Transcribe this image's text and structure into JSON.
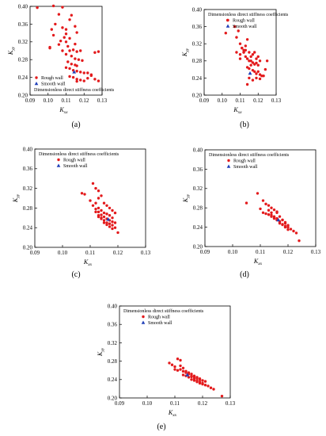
{
  "figure": {
    "axis_label_x": {
      "main": "K",
      "sub": "xx"
    },
    "axis_label_y": {
      "main": "K",
      "sub": "yy"
    },
    "legend_title": "Dimensionless direct stiffness coefficients",
    "legend_items": [
      {
        "label": "Rough wall",
        "color": "#e31a1c",
        "marker": "circle"
      },
      {
        "label": "Smooth wall",
        "color": "#1f3fb8",
        "marker": "triangle"
      }
    ]
  },
  "chart_data": [
    {
      "panel": "(a)",
      "type": "scatter",
      "legend_placement": "bottom-left",
      "xlim": [
        0.09,
        0.13
      ],
      "ylim": [
        0.2,
        0.4
      ],
      "xticks": [
        "0.09",
        "0.10",
        "0.11",
        "0.12",
        "0.13"
      ],
      "yticks": [
        "0.20",
        "0.24",
        "0.28",
        "0.32",
        "0.36",
        "0.40"
      ],
      "series": [
        {
          "name": "Rough wall",
          "color": "#e31a1c",
          "x": [
            0.094,
            0.103,
            0.106,
            0.108,
            0.102,
            0.104,
            0.101,
            0.108,
            0.11,
            0.11,
            0.112,
            0.113,
            0.115,
            0.116,
            0.103,
            0.107,
            0.109,
            0.11,
            0.111,
            0.112,
            0.114,
            0.116,
            0.118,
            0.108,
            0.11,
            0.113,
            0.115,
            0.117,
            0.119,
            0.111,
            0.113,
            0.115,
            0.116,
            0.11,
            0.112,
            0.114,
            0.116,
            0.118,
            0.12,
            0.122,
            0.124,
            0.126,
            0.128,
            0.112,
            0.114,
            0.116,
            0.118,
            0.12,
            0.122,
            0.124,
            0.126,
            0.128,
            0.101,
            0.106,
            0.112,
            0.115,
            0.116
          ],
          "y": [
            0.397,
            0.401,
            0.382,
            0.398,
            0.348,
            0.36,
            0.308,
            0.352,
            0.348,
            0.338,
            0.37,
            0.38,
            0.355,
            0.341,
            0.335,
            0.322,
            0.33,
            0.32,
            0.31,
            0.3,
            0.302,
            0.298,
            0.3,
            0.3,
            0.292,
            0.288,
            0.282,
            0.28,
            0.278,
            0.275,
            0.27,
            0.268,
            0.266,
            0.262,
            0.26,
            0.256,
            0.254,
            0.252,
            0.25,
            0.25,
            0.246,
            0.296,
            0.298,
            0.242,
            0.24,
            0.236,
            0.234,
            0.232,
            0.238,
            0.244,
            0.236,
            0.232,
            0.306,
            0.314,
            0.328,
            0.315,
            0.231
          ]
        },
        {
          "name": "Smooth wall",
          "color": "#1f3fb8",
          "x": [
            0.1145
          ],
          "y": [
            0.252
          ]
        }
      ]
    },
    {
      "panel": "(b)",
      "type": "scatter",
      "legend_placement": "top-right",
      "xlim": [
        0.09,
        0.13
      ],
      "ylim": [
        0.2,
        0.4
      ],
      "xticks": [
        "0.09",
        "0.10",
        "0.11",
        "0.12",
        "0.13"
      ],
      "yticks": [
        "0.20",
        "0.24",
        "0.28",
        "0.32",
        "0.36",
        "0.40"
      ],
      "series": [
        {
          "name": "Rough wall",
          "color": "#e31a1c",
          "x": [
            0.102,
            0.103,
            0.107,
            0.108,
            0.109,
            0.11,
            0.111,
            0.112,
            0.113,
            0.114,
            0.115,
            0.116,
            0.117,
            0.118,
            0.119,
            0.12,
            0.121,
            0.108,
            0.11,
            0.112,
            0.113,
            0.114,
            0.115,
            0.116,
            0.117,
            0.118,
            0.119,
            0.12,
            0.111,
            0.113,
            0.114,
            0.115,
            0.116,
            0.117,
            0.118,
            0.119,
            0.12,
            0.121,
            0.122,
            0.123,
            0.124,
            0.125,
            0.114,
            0.115,
            0.117,
            0.119,
            0.121,
            0.11,
            0.112
          ],
          "y": [
            0.345,
            0.375,
            0.36,
            0.335,
            0.35,
            0.32,
            0.31,
            0.305,
            0.315,
            0.33,
            0.3,
            0.29,
            0.295,
            0.3,
            0.285,
            0.29,
            0.28,
            0.3,
            0.295,
            0.3,
            0.29,
            0.285,
            0.28,
            0.28,
            0.276,
            0.272,
            0.275,
            0.27,
            0.31,
            0.305,
            0.265,
            0.262,
            0.27,
            0.258,
            0.255,
            0.25,
            0.255,
            0.248,
            0.245,
            0.245,
            0.26,
            0.28,
            0.225,
            0.24,
            0.235,
            0.24,
            0.238,
            0.285,
            0.3
          ]
        },
        {
          "name": "Smooth wall",
          "color": "#1f3fb8",
          "x": [
            0.1155
          ],
          "y": [
            0.251
          ]
        }
      ]
    },
    {
      "panel": "(c)",
      "type": "scatter",
      "legend_placement": "top-left",
      "xlim": [
        0.09,
        0.13
      ],
      "ylim": [
        0.2,
        0.4
      ],
      "xticks": [
        "0.09",
        "0.10",
        "0.11",
        "0.12",
        "0.13"
      ],
      "yticks": [
        "0.20",
        "0.24",
        "0.28",
        "0.32",
        "0.36",
        "0.40"
      ],
      "series": [
        {
          "name": "Rough wall",
          "color": "#e31a1c",
          "x": [
            0.107,
            0.108,
            0.11,
            0.111,
            0.112,
            0.113,
            0.112,
            0.113,
            0.114,
            0.115,
            0.116,
            0.117,
            0.118,
            0.119,
            0.113,
            0.114,
            0.115,
            0.116,
            0.117,
            0.118,
            0.111,
            0.112,
            0.113,
            0.114,
            0.115,
            0.116,
            0.117,
            0.118,
            0.119,
            0.12,
            0.113,
            0.114,
            0.115,
            0.116,
            0.117,
            0.118,
            0.119,
            0.112,
            0.113,
            0.114,
            0.115,
            0.116,
            0.117,
            0.118
          ],
          "y": [
            0.31,
            0.308,
            0.295,
            0.33,
            0.32,
            0.315,
            0.29,
            0.3,
            0.305,
            0.29,
            0.285,
            0.28,
            0.275,
            0.27,
            0.28,
            0.275,
            0.27,
            0.268,
            0.265,
            0.26,
            0.285,
            0.278,
            0.272,
            0.266,
            0.262,
            0.258,
            0.255,
            0.252,
            0.25,
            0.23,
            0.265,
            0.26,
            0.255,
            0.25,
            0.248,
            0.245,
            0.24,
            0.272,
            0.262,
            0.258,
            0.25,
            0.246,
            0.242,
            0.238
          ]
        },
        {
          "name": "Smooth wall",
          "color": "#1f3fb8",
          "x": [
            0.1165
          ],
          "y": [
            0.257
          ]
        }
      ]
    },
    {
      "panel": "(d)",
      "type": "scatter",
      "legend_placement": "top-left",
      "xlim": [
        0.09,
        0.13
      ],
      "ylim": [
        0.2,
        0.4
      ],
      "xticks": [
        "0.09",
        "0.10",
        "0.11",
        "0.12",
        "0.13"
      ],
      "yticks": [
        "0.20",
        "0.24",
        "0.28",
        "0.32",
        "0.36",
        "0.40"
      ],
      "series": [
        {
          "name": "Rough wall",
          "color": "#e31a1c",
          "x": [
            0.105,
            0.109,
            0.11,
            0.111,
            0.112,
            0.113,
            0.114,
            0.115,
            0.116,
            0.111,
            0.112,
            0.113,
            0.114,
            0.115,
            0.116,
            0.117,
            0.118,
            0.119,
            0.113,
            0.114,
            0.115,
            0.116,
            0.117,
            0.118,
            0.119,
            0.12,
            0.121,
            0.122,
            0.123,
            0.124,
            0.114,
            0.115,
            0.116,
            0.117,
            0.118,
            0.119,
            0.12,
            0.116,
            0.117,
            0.118,
            0.119,
            0.12
          ],
          "y": [
            0.29,
            0.31,
            0.278,
            0.295,
            0.288,
            0.285,
            0.28,
            0.276,
            0.272,
            0.27,
            0.268,
            0.266,
            0.262,
            0.258,
            0.255,
            0.252,
            0.255,
            0.248,
            0.275,
            0.27,
            0.262,
            0.258,
            0.25,
            0.246,
            0.242,
            0.24,
            0.236,
            0.232,
            0.228,
            0.212,
            0.265,
            0.26,
            0.255,
            0.248,
            0.245,
            0.24,
            0.235,
            0.27,
            0.262,
            0.255,
            0.25,
            0.244
          ]
        },
        {
          "name": "Smooth wall",
          "color": "#1f3fb8",
          "x": [
            0.1165
          ],
          "y": [
            0.255
          ]
        }
      ]
    },
    {
      "panel": "(e)",
      "type": "scatter",
      "legend_placement": "top-left",
      "xlim": [
        0.09,
        0.13
      ],
      "ylim": [
        0.2,
        0.4
      ],
      "xticks": [
        "0.09",
        "0.10",
        "0.11",
        "0.12",
        "0.13"
      ],
      "yticks": [
        "0.20",
        "0.24",
        "0.28",
        "0.32",
        "0.36",
        "0.40"
      ],
      "series": [
        {
          "name": "Rough wall",
          "color": "#e31a1c",
          "x": [
            0.108,
            0.109,
            0.11,
            0.111,
            0.112,
            0.11,
            0.111,
            0.112,
            0.113,
            0.114,
            0.115,
            0.116,
            0.117,
            0.118,
            0.119,
            0.112,
            0.113,
            0.114,
            0.115,
            0.116,
            0.117,
            0.118,
            0.119,
            0.12,
            0.121,
            0.113,
            0.114,
            0.115,
            0.116,
            0.117,
            0.118,
            0.119,
            0.12,
            0.121,
            0.122,
            0.123,
            0.124,
            0.127,
            0.116,
            0.117,
            0.118,
            0.119,
            0.12
          ],
          "y": [
            0.276,
            0.272,
            0.268,
            0.285,
            0.282,
            0.262,
            0.26,
            0.27,
            0.265,
            0.258,
            0.255,
            0.252,
            0.248,
            0.245,
            0.242,
            0.262,
            0.258,
            0.255,
            0.252,
            0.248,
            0.246,
            0.243,
            0.24,
            0.238,
            0.236,
            0.25,
            0.248,
            0.245,
            0.24,
            0.238,
            0.235,
            0.232,
            0.23,
            0.228,
            0.226,
            0.222,
            0.219,
            0.204,
            0.246,
            0.242,
            0.238,
            0.235,
            0.232
          ]
        },
        {
          "name": "Smooth wall",
          "color": "#1f3fb8",
          "x": [
            0.1145
          ],
          "y": [
            0.25
          ]
        }
      ]
    }
  ]
}
